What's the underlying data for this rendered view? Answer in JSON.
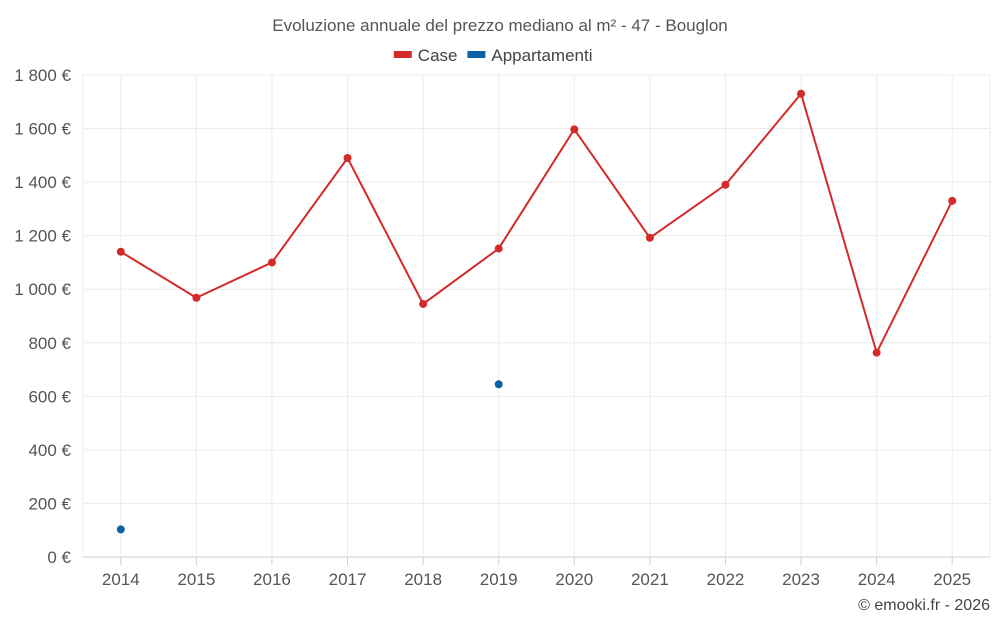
{
  "chart_data": {
    "type": "line",
    "title": "Evoluzione annuale del prezzo mediano al m² - 47 - Bouglon",
    "categories": [
      "2014",
      "2015",
      "2016",
      "2017",
      "2018",
      "2019",
      "2020",
      "2021",
      "2022",
      "2023",
      "2024",
      "2025"
    ],
    "series": [
      {
        "name": "Case",
        "color": "#d32a2a",
        "values": [
          1140,
          968,
          1100,
          1490,
          945,
          1152,
          1597,
          1192,
          1390,
          1730,
          763,
          1330
        ]
      },
      {
        "name": "Appartamenti",
        "color": "#0b62a4",
        "values": [
          103,
          null,
          null,
          null,
          null,
          645,
          null,
          null,
          null,
          null,
          null,
          null
        ]
      }
    ],
    "y_ticks": [
      "0 €",
      "200 €",
      "400 €",
      "600 €",
      "800 €",
      "1 000 €",
      "1 200 €",
      "1 400 €",
      "1 600 €",
      "1 800 €"
    ],
    "ylim": [
      0,
      1800
    ],
    "grid": true,
    "legend_position": "top-center"
  },
  "credit": "© emooki.fr - 2026"
}
